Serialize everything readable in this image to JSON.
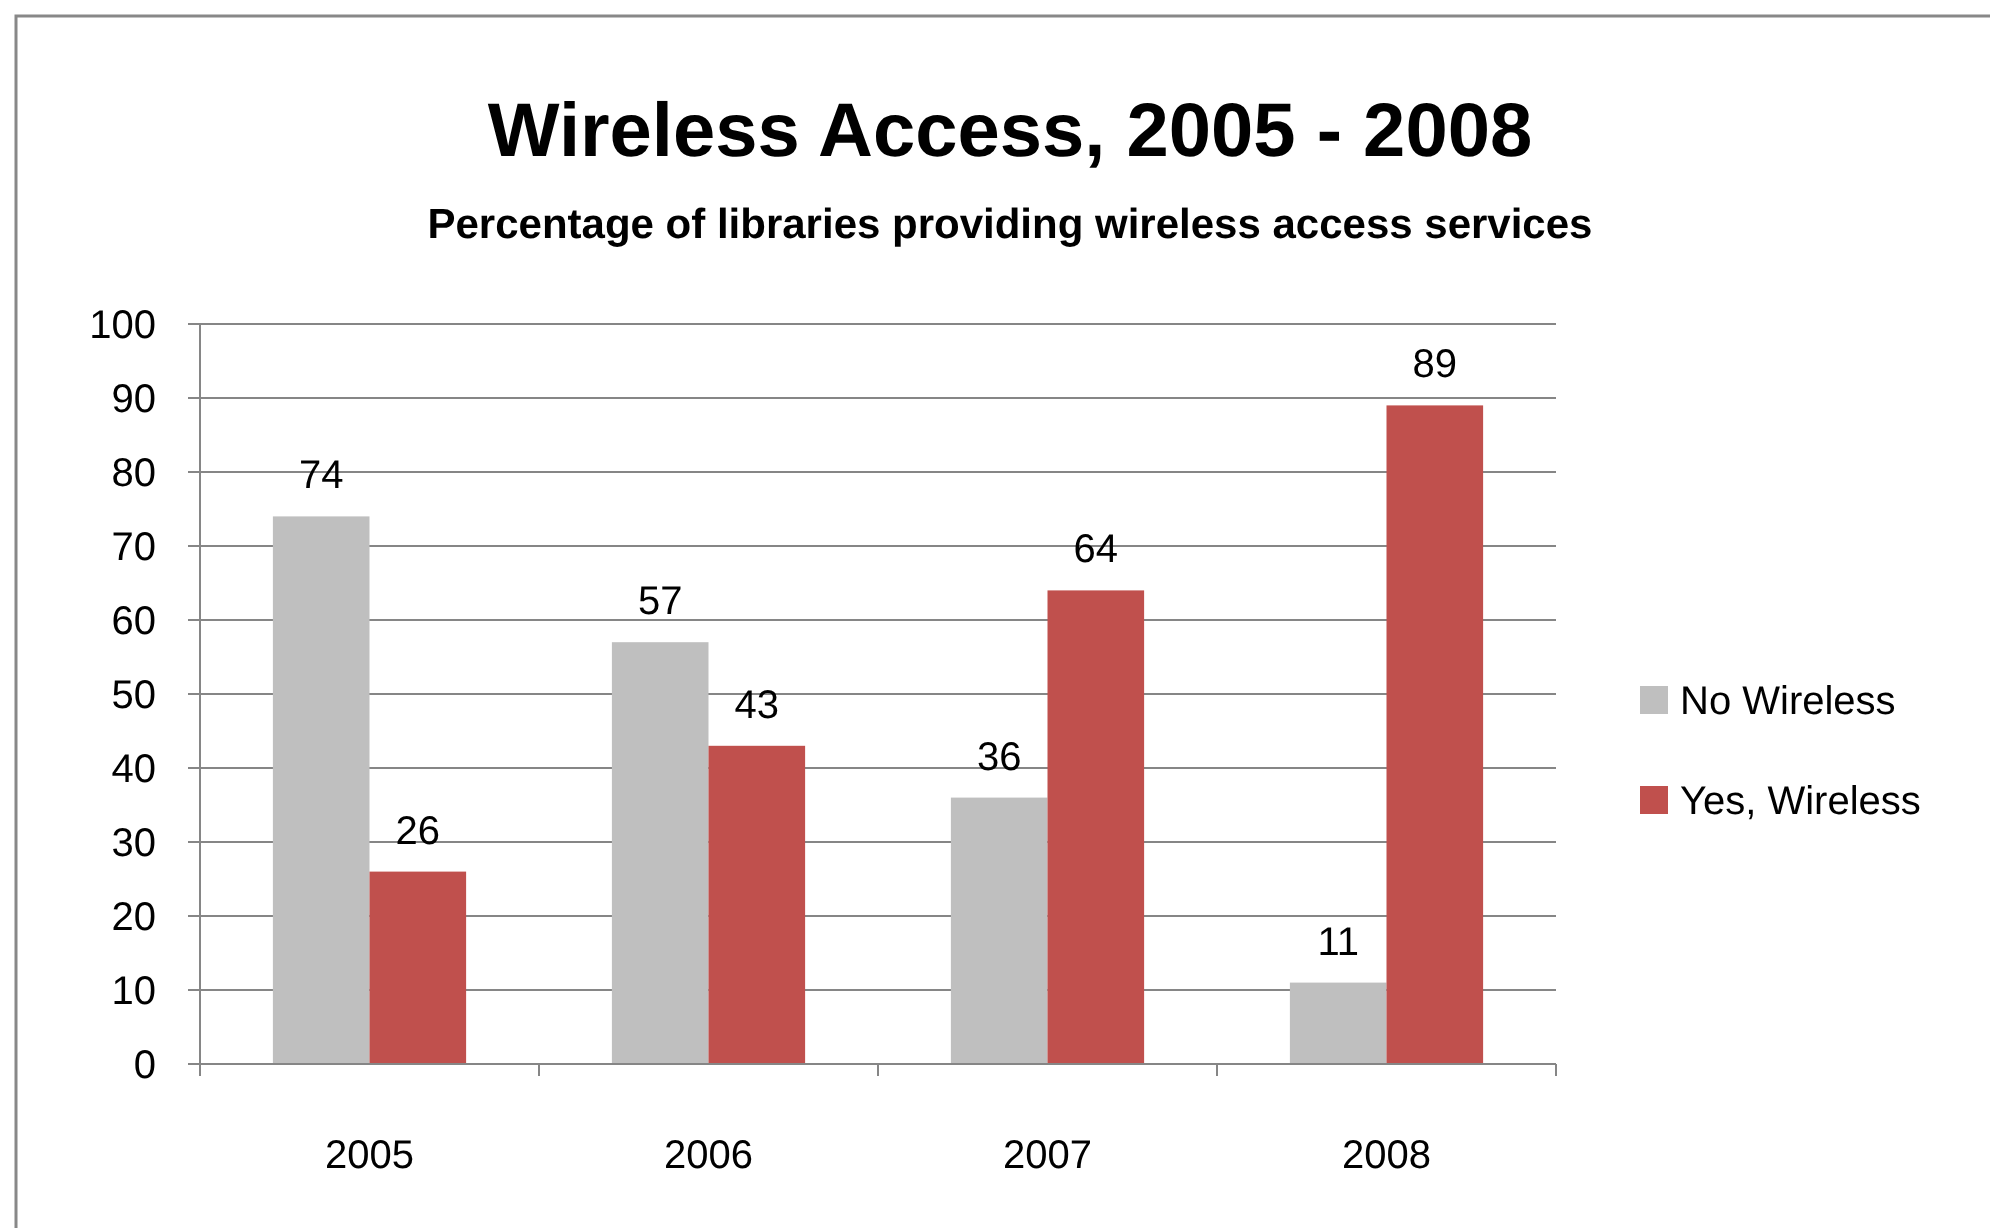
{
  "chart_data": {
    "type": "bar",
    "title": "Wireless Access, 2005 - 2008",
    "subtitle": "Percentage of libraries providing wireless access services",
    "categories": [
      "2005",
      "2006",
      "2007",
      "2008"
    ],
    "series": [
      {
        "name": "No Wireless",
        "color": "#bfbfbf",
        "values": [
          74,
          57,
          36,
          11
        ]
      },
      {
        "name": "Yes, Wireless",
        "color": "#c0504d",
        "values": [
          26,
          43,
          64,
          89
        ]
      }
    ],
    "ylim": [
      0,
      100
    ],
    "yticks": [
      0,
      10,
      20,
      30,
      40,
      50,
      60,
      70,
      80,
      90,
      100
    ],
    "grid": "y",
    "legend": "right",
    "data_labels": true
  }
}
